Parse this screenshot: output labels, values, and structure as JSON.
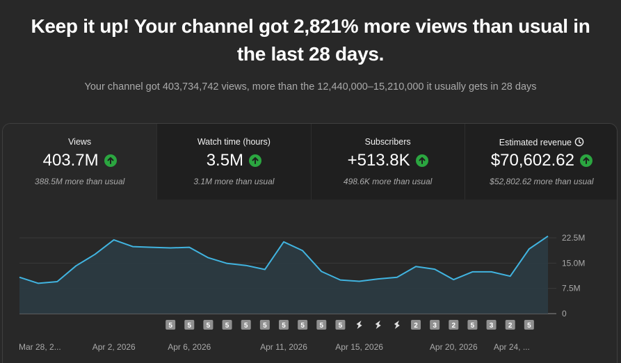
{
  "header": {
    "headline": "Keep it up! Your channel got 2,821% more views than usual in the last 28 days.",
    "subline": "Your channel got 403,734,742 views, more than the 12,440,000–15,210,000 it usually gets in 28 days"
  },
  "metrics": [
    {
      "label": "Views",
      "value": "403.7M",
      "note": "388.5M more than usual",
      "trend": "up"
    },
    {
      "label": "Watch time (hours)",
      "value": "3.5M",
      "note": "3.1M more than usual",
      "trend": "up"
    },
    {
      "label": "Subscribers",
      "value": "+513.8K",
      "note": "498.6K more than usual",
      "trend": "up"
    },
    {
      "label": "Estimated revenue",
      "value": "$70,602.62",
      "note": "$52,802.62 more than usual",
      "trend": "up",
      "icon": "clock-icon"
    }
  ],
  "colors": {
    "accent_line": "#41b4e0",
    "area_fill": "#2b3b43",
    "trend_up": "#2ba640",
    "background": "#282828",
    "tile_background": "#1f1f1f"
  },
  "chart_data": {
    "type": "area",
    "title": "",
    "x": [
      "Mar 28",
      "Mar 29",
      "Mar 30",
      "Mar 31",
      "Apr 1",
      "Apr 2",
      "Apr 3",
      "Apr 4",
      "Apr 5",
      "Apr 6",
      "Apr 7",
      "Apr 8",
      "Apr 9",
      "Apr 10",
      "Apr 11",
      "Apr 12",
      "Apr 13",
      "Apr 14",
      "Apr 15",
      "Apr 16",
      "Apr 17",
      "Apr 18",
      "Apr 19",
      "Apr 20",
      "Apr 21",
      "Apr 22",
      "Apr 23",
      "Apr 24",
      "Apr 25"
    ],
    "values": [
      10.8,
      9.0,
      9.5,
      14.2,
      17.6,
      21.9,
      19.9,
      19.7,
      19.5,
      19.7,
      16.6,
      14.9,
      14.3,
      13.1,
      21.3,
      18.7,
      12.5,
      10.0,
      9.6,
      10.3,
      10.8,
      14.0,
      13.2,
      10.1,
      12.4,
      12.4,
      11.1,
      19.2,
      23.0
    ],
    "series_units": "views",
    "y_ticks": [
      "0",
      "7.5M",
      "15.0M",
      "22.5M"
    ],
    "y_tick_values": [
      0,
      7.5,
      15.0,
      22.5
    ],
    "ylim": [
      0,
      22.5
    ],
    "x_tick_labels": [
      {
        "label": "Mar 28, 2...",
        "index": 0
      },
      {
        "label": "Apr 2, 2026",
        "index": 5
      },
      {
        "label": "Apr 6, 2026",
        "index": 9
      },
      {
        "label": "Apr 11, 2026",
        "index": 14
      },
      {
        "label": "Apr 15, 2026",
        "index": 18
      },
      {
        "label": "Apr 20, 2026",
        "index": 23
      },
      {
        "label": "Apr 24, ...",
        "index": 27
      }
    ],
    "grid": true,
    "markers": [
      {
        "index": 8,
        "label": "5"
      },
      {
        "index": 9,
        "label": "5"
      },
      {
        "index": 10,
        "label": "5"
      },
      {
        "index": 11,
        "label": "5"
      },
      {
        "index": 12,
        "label": "5"
      },
      {
        "index": 13,
        "label": "5"
      },
      {
        "index": 14,
        "label": "5"
      },
      {
        "index": 15,
        "label": "5"
      },
      {
        "index": 16,
        "label": "5"
      },
      {
        "index": 17,
        "label": "5"
      },
      {
        "index": 18,
        "label": "",
        "icon": "shorts-icon"
      },
      {
        "index": 19,
        "label": "",
        "icon": "shorts-icon"
      },
      {
        "index": 20,
        "label": "",
        "icon": "shorts-icon"
      },
      {
        "index": 21,
        "label": "2"
      },
      {
        "index": 22,
        "label": "3"
      },
      {
        "index": 23,
        "label": "2"
      },
      {
        "index": 24,
        "label": "5"
      },
      {
        "index": 25,
        "label": "3"
      },
      {
        "index": 26,
        "label": "2"
      },
      {
        "index": 27,
        "label": "5"
      }
    ]
  }
}
